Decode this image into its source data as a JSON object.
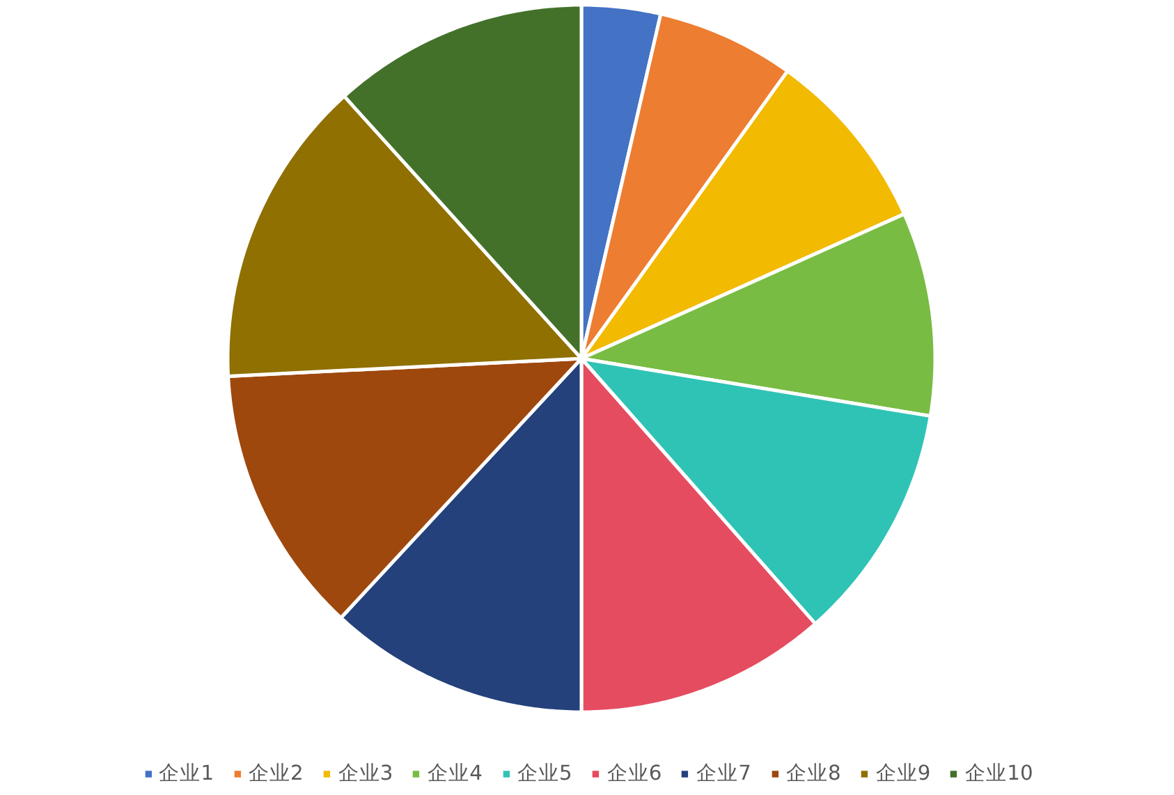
{
  "chart_data": {
    "type": "pie",
    "categories": [
      "企业1",
      "企业2",
      "企业3",
      "企业4",
      "企业5",
      "企业6",
      "企业7",
      "企业8",
      "企业9",
      "企业10"
    ],
    "values": [
      3.6,
      6.3,
      8.4,
      9.3,
      10.9,
      11.5,
      11.9,
      12.3,
      14.1,
      11.7
    ],
    "colors": [
      "#4472c4",
      "#ed7d31",
      "#f2ba00",
      "#78bc43",
      "#2fc3b5",
      "#e54c60",
      "#24417c",
      "#9e480e",
      "#8f7000",
      "#43712a"
    ],
    "legend": "bottom"
  }
}
